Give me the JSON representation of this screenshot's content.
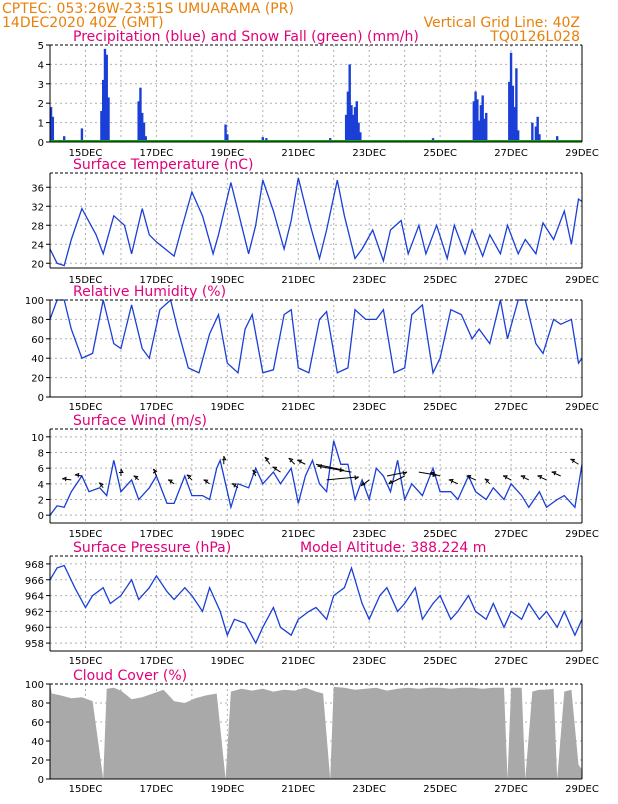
{
  "header": {
    "line1": "CPTEC:   053:26W-23:51S   UMUARAMA (PR)",
    "line2": "14DEC2020 40Z (GMT)",
    "grid_note": "Vertical Grid Line: 40Z",
    "code": "TQ0126L028"
  },
  "colors": {
    "header": "#e8800a",
    "title": "#e0007a",
    "line": "#1a3fd6",
    "snow": "#10a010",
    "cloud": "#a9a9a9",
    "arrow": "#000000"
  },
  "chart_data": [
    {
      "type": "bar",
      "title": "Precipitation (blue) and Snow Fall (green) (mm/h)",
      "ylim": [
        0,
        5
      ],
      "yticks": [
        "0",
        "1",
        "2",
        "3",
        "4",
        "5"
      ],
      "xticks": [
        "15DEC",
        "17DEC",
        "19DEC",
        "21DEC",
        "23DEC",
        "25DEC",
        "27DEC",
        "29DEC"
      ],
      "series": [
        {
          "name": "Precipitation",
          "color": "#1a3fd6",
          "x": [
            14.03,
            14.08,
            14.4,
            14.9,
            15.45,
            15.5,
            15.55,
            15.6,
            15.65,
            16.5,
            16.55,
            16.6,
            16.65,
            16.7,
            18.95,
            19.0,
            20.0,
            20.1,
            21.9,
            22.35,
            22.4,
            22.45,
            22.5,
            22.55,
            22.6,
            22.65,
            22.7,
            22.75,
            23.3,
            24.8,
            25.95,
            26.0,
            26.05,
            26.1,
            26.15,
            26.2,
            26.25,
            26.3,
            26.95,
            27.0,
            27.05,
            27.1,
            27.15,
            27.2,
            27.6,
            27.7,
            27.75,
            27.8,
            28.3
          ],
          "values": [
            1.8,
            1.3,
            0.3,
            0.7,
            1.6,
            3.2,
            4.8,
            4.5,
            2.3,
            2.1,
            2.8,
            1.5,
            1.0,
            0.3,
            0.9,
            0.4,
            0.25,
            0.2,
            0.2,
            1.4,
            2.6,
            4.0,
            1.9,
            1.4,
            1.8,
            2.1,
            1.0,
            0.5,
            0.1,
            0.2,
            2.1,
            2.6,
            2.2,
            1.1,
            1.9,
            2.4,
            1.2,
            1.5,
            3.1,
            4.6,
            2.9,
            1.8,
            3.8,
            0.6,
            1.0,
            0.8,
            1.3,
            0.4,
            0.3
          ]
        },
        {
          "name": "Snow Fall",
          "color": "#10a010",
          "x": [
            14.0,
            29.0
          ],
          "values": [
            0.05,
            0.05
          ]
        }
      ]
    },
    {
      "type": "line",
      "title": "Surface Temperature (nC)",
      "ylim": [
        19,
        39
      ],
      "yticks": [
        "20",
        "24",
        "28",
        "32",
        "36"
      ],
      "xticks": [
        "15DEC",
        "17DEC",
        "19DEC",
        "21DEC",
        "23DEC",
        "25DEC",
        "27DEC",
        "29DEC"
      ],
      "x": [
        14.0,
        14.2,
        14.4,
        14.6,
        14.9,
        15.3,
        15.5,
        15.8,
        16.1,
        16.3,
        16.6,
        16.8,
        17.0,
        17.5,
        17.7,
        18.0,
        18.3,
        18.6,
        18.75,
        19.1,
        19.3,
        19.6,
        19.8,
        20.0,
        20.3,
        20.6,
        20.8,
        21.0,
        21.3,
        21.6,
        21.8,
        22.1,
        22.3,
        22.6,
        22.8,
        23.1,
        23.4,
        23.6,
        23.9,
        24.1,
        24.4,
        24.6,
        24.9,
        25.2,
        25.4,
        25.7,
        25.9,
        26.2,
        26.4,
        26.7,
        26.9,
        27.2,
        27.4,
        27.7,
        27.9,
        28.2,
        28.5,
        28.7,
        28.9,
        29.0
      ],
      "values": [
        23,
        20,
        19.5,
        25,
        31.5,
        26,
        22,
        30,
        28,
        22,
        31.5,
        26,
        24.5,
        21.5,
        27,
        35,
        30,
        22,
        26,
        37,
        31,
        22,
        28,
        37.5,
        31,
        23,
        29,
        38,
        29,
        21,
        27,
        37.5,
        30,
        21,
        23,
        27,
        20.5,
        27,
        29,
        22,
        28,
        22,
        28,
        21,
        28,
        22,
        27,
        21.5,
        26,
        22,
        28,
        22,
        25,
        22,
        28.5,
        25,
        31,
        24,
        33.5,
        33
      ]
    },
    {
      "type": "line",
      "title": "Relative Humidity (%)",
      "ylim": [
        0,
        100
      ],
      "yticks": [
        "0",
        "20",
        "40",
        "60",
        "80",
        "100"
      ],
      "xticks": [
        "15DEC",
        "17DEC",
        "19DEC",
        "21DEC",
        "23DEC",
        "25DEC",
        "27DEC",
        "29DEC"
      ],
      "x": [
        14.0,
        14.2,
        14.4,
        14.6,
        14.9,
        15.2,
        15.5,
        15.8,
        16.0,
        16.3,
        16.6,
        16.8,
        17.1,
        17.4,
        17.6,
        17.9,
        18.2,
        18.5,
        18.75,
        19.0,
        19.3,
        19.5,
        19.7,
        20.0,
        20.3,
        20.6,
        20.8,
        21.0,
        21.3,
        21.6,
        21.8,
        22.1,
        22.4,
        22.6,
        22.9,
        23.2,
        23.4,
        23.7,
        24.0,
        24.2,
        24.5,
        24.8,
        25.0,
        25.3,
        25.6,
        25.9,
        26.1,
        26.4,
        26.7,
        26.9,
        27.2,
        27.4,
        27.7,
        27.9,
        28.2,
        28.4,
        28.7,
        28.9,
        29.0
      ],
      "values": [
        80,
        100,
        100,
        70,
        40,
        45,
        100,
        55,
        50,
        95,
        50,
        40,
        90,
        100,
        70,
        30,
        25,
        65,
        85,
        35,
        25,
        70,
        85,
        25,
        28,
        85,
        90,
        30,
        25,
        80,
        88,
        25,
        30,
        90,
        80,
        80,
        90,
        25,
        30,
        85,
        95,
        25,
        40,
        90,
        85,
        60,
        70,
        55,
        100,
        60,
        100,
        100,
        55,
        45,
        80,
        75,
        80,
        35,
        40
      ]
    },
    {
      "type": "line",
      "title": "Surface Wind (m/s)",
      "ylim": [
        -1,
        11
      ],
      "yticks": [
        "0",
        "2",
        "4",
        "6",
        "8",
        "10"
      ],
      "xticks": [
        "15DEC",
        "17DEC",
        "19DEC",
        "21DEC",
        "23DEC",
        "25DEC",
        "27DEC",
        "29DEC"
      ],
      "x": [
        14.0,
        14.2,
        14.4,
        14.6,
        14.9,
        15.1,
        15.4,
        15.6,
        15.8,
        16.0,
        16.3,
        16.5,
        16.8,
        17.0,
        17.3,
        17.5,
        17.8,
        18.0,
        18.3,
        18.5,
        18.7,
        18.8,
        19.1,
        19.3,
        19.6,
        19.8,
        20.0,
        20.3,
        20.5,
        20.8,
        21.0,
        21.2,
        21.4,
        21.6,
        21.8,
        22.0,
        22.2,
        22.4,
        22.6,
        22.8,
        23.0,
        23.2,
        23.4,
        23.6,
        23.8,
        24.0,
        24.2,
        24.5,
        24.8,
        25.0,
        25.3,
        25.5,
        25.8,
        26.0,
        26.3,
        26.5,
        26.8,
        27.0,
        27.3,
        27.5,
        27.8,
        28.0,
        28.3,
        28.5,
        28.8,
        29.0
      ],
      "values": [
        0,
        1.2,
        1,
        3,
        5,
        3,
        3.5,
        2.5,
        7,
        3,
        4.5,
        2,
        3.5,
        5,
        1.5,
        1.5,
        5,
        2.5,
        2.5,
        2,
        6,
        7,
        1,
        4,
        3.5,
        6,
        4,
        5.5,
        4,
        6,
        1.5,
        5,
        7,
        4,
        3,
        9.5,
        6.5,
        6.5,
        2,
        4.5,
        2,
        6,
        5,
        3,
        7,
        2,
        4,
        2.5,
        6,
        3,
        3,
        2,
        5,
        3,
        2,
        3.5,
        2,
        4,
        2.5,
        1,
        3,
        1,
        2,
        2.5,
        1,
        6.5
      ]
    },
    {
      "type": "line",
      "title": "Surface Pressure (hPa)",
      "annotation": "Model Altitude: 388.224 m",
      "ylim": [
        957,
        969
      ],
      "yticks": [
        "958",
        "960",
        "962",
        "964",
        "966",
        "968"
      ],
      "xticks": [
        "15DEC",
        "17DEC",
        "19DEC",
        "21DEC",
        "23DEC",
        "25DEC",
        "27DEC",
        "29DEC"
      ],
      "x": [
        14.0,
        14.2,
        14.4,
        14.7,
        15.0,
        15.2,
        15.5,
        15.7,
        16.0,
        16.3,
        16.5,
        16.8,
        17.0,
        17.3,
        17.5,
        17.8,
        18.0,
        18.3,
        18.5,
        18.8,
        19.0,
        19.2,
        19.5,
        19.8,
        20.0,
        20.3,
        20.5,
        20.8,
        21.0,
        21.3,
        21.5,
        21.8,
        22.0,
        22.3,
        22.5,
        22.8,
        23.0,
        23.3,
        23.5,
        23.8,
        24.0,
        24.3,
        24.5,
        24.8,
        25.0,
        25.3,
        25.5,
        25.8,
        26.0,
        26.3,
        26.5,
        26.8,
        27.0,
        27.3,
        27.5,
        27.8,
        28.0,
        28.3,
        28.5,
        28.8,
        29.0
      ],
      "values": [
        966,
        967.5,
        967.8,
        965,
        962.5,
        964,
        965,
        963,
        964,
        966,
        963.5,
        965,
        966.5,
        964.5,
        963.5,
        965,
        964,
        962,
        965,
        962,
        959,
        961,
        960.5,
        958,
        960,
        962.5,
        960,
        959,
        961,
        962,
        962.5,
        961,
        964,
        965,
        967.5,
        963,
        961,
        964,
        965,
        962,
        963,
        965,
        961,
        963,
        964,
        961,
        962,
        964,
        962,
        961,
        963,
        960,
        962,
        961,
        963,
        961,
        962,
        960,
        962,
        959,
        961
      ]
    },
    {
      "type": "area",
      "title": "Cloud Cover (%)",
      "ylim": [
        0,
        100
      ],
      "yticks": [
        "0",
        "20",
        "40",
        "60",
        "80",
        "100"
      ],
      "xticks": [
        "15DEC",
        "17DEC",
        "19DEC",
        "21DEC",
        "23DEC",
        "25DEC",
        "27DEC",
        "29DEC"
      ],
      "x": [
        14.0,
        14.05,
        14.3,
        14.6,
        14.9,
        15.2,
        15.5,
        15.6,
        15.8,
        16.0,
        16.3,
        16.6,
        16.9,
        17.2,
        17.5,
        17.8,
        18.1,
        18.4,
        18.7,
        18.95,
        19.1,
        19.4,
        19.7,
        20.0,
        20.3,
        20.6,
        20.9,
        21.2,
        21.5,
        21.7,
        21.9,
        22.0,
        22.3,
        22.6,
        22.9,
        23.2,
        23.5,
        23.8,
        24.1,
        24.4,
        24.7,
        25.0,
        25.3,
        25.6,
        25.9,
        26.2,
        26.5,
        26.8,
        26.9,
        27.0,
        27.3,
        27.4,
        27.6,
        27.8,
        28.0,
        28.2,
        28.3,
        28.5,
        28.7,
        28.9,
        29.0
      ],
      "values": [
        100,
        90,
        88,
        85,
        86,
        82,
        0,
        95,
        96,
        93,
        84,
        86,
        90,
        94,
        82,
        80,
        85,
        88,
        90,
        0,
        92,
        95,
        93,
        95,
        92,
        94,
        93,
        96,
        92,
        90,
        0,
        97,
        96,
        94,
        95,
        96,
        93,
        95,
        96,
        95,
        96,
        96,
        95,
        96,
        96,
        95,
        96,
        96,
        0,
        96,
        96,
        0,
        92,
        94,
        94,
        95,
        0,
        92,
        94,
        15,
        10
      ]
    }
  ],
  "wind_arrows": [
    {
      "x": 14.6,
      "y": 4.5,
      "dx": -9,
      "dy": -1
    },
    {
      "x": 14.9,
      "y": 5.0,
      "dx": -7,
      "dy": -1
    },
    {
      "x": 15.5,
      "y": 3.5,
      "dx": -4,
      "dy": -5
    },
    {
      "x": 16.0,
      "y": 5.0,
      "dx": 0,
      "dy": -7
    },
    {
      "x": 16.5,
      "y": 4.5,
      "dx": -5,
      "dy": -4
    },
    {
      "x": 17.0,
      "y": 5.0,
      "dx": -3,
      "dy": -7
    },
    {
      "x": 17.5,
      "y": 4.0,
      "dx": -6,
      "dy": -4
    },
    {
      "x": 18.0,
      "y": 4.5,
      "dx": -5,
      "dy": -5
    },
    {
      "x": 18.5,
      "y": 4.0,
      "dx": -6,
      "dy": -4
    },
    {
      "x": 18.9,
      "y": 6.5,
      "dx": 0,
      "dy": -8
    },
    {
      "x": 19.3,
      "y": 3.5,
      "dx": -6,
      "dy": -4
    },
    {
      "x": 19.8,
      "y": 5.0,
      "dx": -3,
      "dy": -6
    },
    {
      "x": 20.2,
      "y": 6.5,
      "dx": -5,
      "dy": -7
    },
    {
      "x": 20.5,
      "y": 5.5,
      "dx": -8,
      "dy": -5
    },
    {
      "x": 20.9,
      "y": 6.5,
      "dx": -6,
      "dy": -6
    },
    {
      "x": 21.2,
      "y": 6.5,
      "dx": -8,
      "dy": -4
    },
    {
      "x": 21.5,
      "y": 6.5,
      "dx": 28,
      "dy": 6
    },
    {
      "x": 21.8,
      "y": 4.5,
      "dx": 32,
      "dy": -3
    },
    {
      "x": 22.5,
      "y": 5.5,
      "dx": -34,
      "dy": -6
    },
    {
      "x": 23.0,
      "y": 4.5,
      "dx": -8,
      "dy": 6
    },
    {
      "x": 23.5,
      "y": 5.0,
      "dx": 20,
      "dy": -4
    },
    {
      "x": 24.0,
      "y": 5.0,
      "dx": -16,
      "dy": 8
    },
    {
      "x": 24.4,
      "y": 5.5,
      "dx": 18,
      "dy": 3
    },
    {
      "x": 25.0,
      "y": 5.0,
      "dx": -10,
      "dy": -3
    },
    {
      "x": 25.5,
      "y": 4.0,
      "dx": -9,
      "dy": -4
    },
    {
      "x": 26.0,
      "y": 4.5,
      "dx": -9,
      "dy": -4
    },
    {
      "x": 26.4,
      "y": 4.0,
      "dx": -5,
      "dy": -5
    },
    {
      "x": 27.0,
      "y": 4.5,
      "dx": -8,
      "dy": -4
    },
    {
      "x": 27.5,
      "y": 4.5,
      "dx": -8,
      "dy": -4
    },
    {
      "x": 28.0,
      "y": 4.5,
      "dx": -9,
      "dy": -4
    },
    {
      "x": 28.4,
      "y": 5.0,
      "dx": -9,
      "dy": -4
    },
    {
      "x": 28.9,
      "y": 6.5,
      "dx": -8,
      "dy": -5
    }
  ]
}
